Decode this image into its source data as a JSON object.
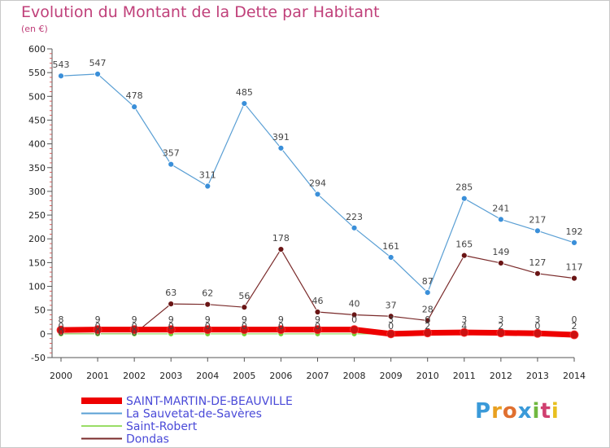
{
  "title": "Evolution du Montant de la Dette par Habitant",
  "unit": "(en €)",
  "logo": {
    "letters": [
      "P",
      "r",
      "o",
      "x",
      "i",
      "t",
      "i"
    ],
    "colors": [
      "#3a9ad9",
      "#e8a020",
      "#e07030",
      "#3a9ad9",
      "#70b840",
      "#d04070",
      "#e8c020"
    ]
  },
  "chart_data": {
    "type": "line",
    "title": "Evolution du Montant de la Dette par Habitant",
    "ylabel": "(en €)",
    "xlabel": "",
    "ylim": [
      -50,
      600
    ],
    "yticks": [
      -50,
      0,
      50,
      100,
      150,
      200,
      250,
      300,
      350,
      400,
      450,
      500,
      550,
      600
    ],
    "categories": [
      "2000",
      "2001",
      "2002",
      "2003",
      "2004",
      "2005",
      "2006",
      "2007",
      "2008",
      "2009",
      "2010",
      "2011",
      "2012",
      "2013",
      "2014"
    ],
    "grid": false,
    "legend_position": "bottom-left",
    "series": [
      {
        "name": "SAINT-MARTIN-DE-BEAUVILLE",
        "color": "#ee0000",
        "marker": "#cc1111",
        "width": 7,
        "values": [
          8,
          9,
          9,
          9,
          9,
          9,
          9,
          9,
          9,
          0,
          2,
          3,
          2,
          1,
          -2
        ],
        "labels": []
      },
      {
        "name": "La Sauvetat-de-Savères",
        "color": "#5a9fd4",
        "marker": "#3a8fd9",
        "width": 1.2,
        "values": [
          543,
          547,
          478,
          357,
          311,
          485,
          391,
          294,
          223,
          161,
          87,
          285,
          241,
          217,
          192
        ],
        "labels": [
          "543",
          "547",
          "478",
          "357",
          "311",
          "485",
          "391",
          "294",
          "223",
          "161",
          "87",
          "285",
          "241",
          "217",
          "192"
        ]
      },
      {
        "name": "Saint-Robert",
        "color": "#99dd66",
        "marker": "#77cc33",
        "width": 1.2,
        "values": [
          0,
          0,
          0,
          0,
          0,
          0,
          0,
          0,
          0,
          0,
          0,
          0,
          0,
          0,
          0
        ],
        "labels": []
      },
      {
        "name": "Dondas",
        "color": "#7a2a2a",
        "marker": "#6a1515",
        "width": 1.2,
        "values": [
          0,
          0,
          0,
          63,
          62,
          56,
          178,
          46,
          40,
          37,
          28,
          165,
          149,
          127,
          117
        ],
        "labels": [
          "",
          "",
          "",
          "63",
          "62",
          "56",
          "178",
          "46",
          "40",
          "37",
          "28",
          "165",
          "149",
          "127",
          "117"
        ]
      }
    ],
    "small_labels": [
      {
        "x": "2000",
        "text": "8"
      },
      {
        "x": "2000",
        "text": "0"
      },
      {
        "x": "2000",
        "text": "0"
      },
      {
        "x": "2001",
        "text": "9"
      },
      {
        "x": "2001",
        "text": "0"
      },
      {
        "x": "2001",
        "text": "0"
      },
      {
        "x": "2002",
        "text": "9"
      },
      {
        "x": "2002",
        "text": "0"
      },
      {
        "x": "2002",
        "text": "0"
      },
      {
        "x": "2003",
        "text": "9"
      },
      {
        "x": "2003",
        "text": "0"
      },
      {
        "x": "2004",
        "text": "9"
      },
      {
        "x": "2004",
        "text": "0"
      },
      {
        "x": "2005",
        "text": "9"
      },
      {
        "x": "2005",
        "text": "0"
      },
      {
        "x": "2006",
        "text": "9"
      },
      {
        "x": "2006",
        "text": "0"
      },
      {
        "x": "2007",
        "text": "9"
      },
      {
        "x": "2007",
        "text": "0"
      },
      {
        "x": "2008",
        "text": "0"
      },
      {
        "x": "2009",
        "text": "3"
      },
      {
        "x": "2009",
        "text": "0"
      },
      {
        "x": "2010",
        "text": "0"
      },
      {
        "x": "2010",
        "text": "2"
      },
      {
        "x": "2011",
        "text": "3"
      },
      {
        "x": "2011",
        "text": "4"
      },
      {
        "x": "2012",
        "text": "3"
      },
      {
        "x": "2012",
        "text": "2"
      },
      {
        "x": "2013",
        "text": "3"
      },
      {
        "x": "2013",
        "text": "0"
      },
      {
        "x": "2014",
        "text": "0"
      },
      {
        "x": "2014",
        "text": "2"
      }
    ]
  }
}
